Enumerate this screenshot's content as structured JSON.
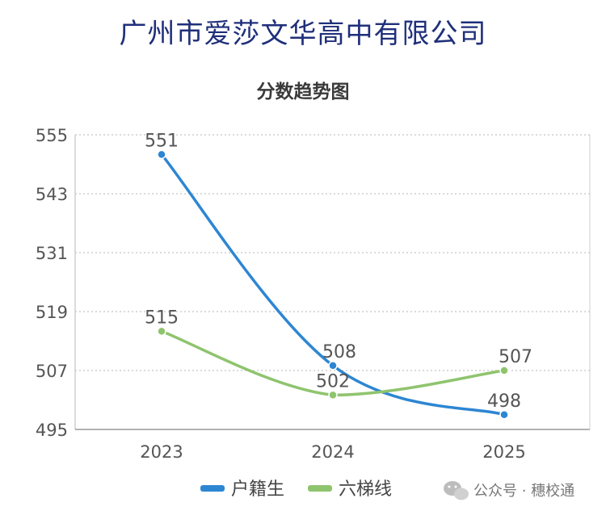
{
  "header": {
    "company": "广州市爱莎文华高中有限公司"
  },
  "watermark": {
    "text": "公众号 · 穗校通"
  },
  "colors": {
    "series1": "#2d86d2",
    "series2": "#8fc46e",
    "grid": "#cfcfcf",
    "axis": "#999999"
  },
  "chart_data": {
    "type": "line",
    "title": "分数趋势图",
    "categories": [
      "2023",
      "2024",
      "2025"
    ],
    "series": [
      {
        "name": "户籍生",
        "values": [
          551,
          508,
          498
        ]
      },
      {
        "name": "六梯线",
        "values": [
          515,
          502,
          507
        ]
      }
    ],
    "yticks": [
      "555",
      "543",
      "531",
      "519",
      "507",
      "495"
    ],
    "ylim": [
      495,
      555
    ],
    "grid": true,
    "legend": "bottom-center"
  }
}
